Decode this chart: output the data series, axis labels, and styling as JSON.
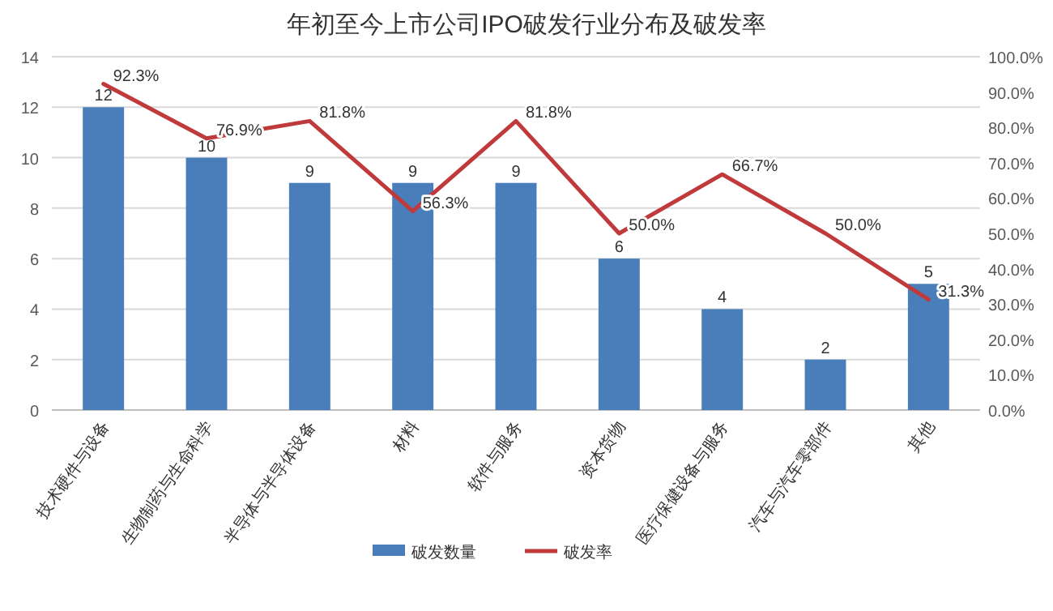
{
  "chart_data": {
    "type": "bar",
    "title": "年初至今上市公司IPO破发行业分布及破发率",
    "categories": [
      "技术硬件与设备",
      "生物制药与生命科学",
      "半导体与半导体设备",
      "材料",
      "软件与服务",
      "资本货物",
      "医疗保健设备与服务",
      "汽车与汽车零部件",
      "其他"
    ],
    "series": [
      {
        "name": "破发数量",
        "color": "#4a7ebb",
        "values": [
          12,
          10,
          9,
          9,
          9,
          6,
          4,
          2,
          5
        ],
        "value_labels": [
          "12",
          "10",
          "9",
          "9",
          "9",
          "6",
          "4",
          "2",
          "5"
        ]
      },
      {
        "name": "破发率",
        "type": "line",
        "axis": "y2",
        "color": "#c0393b",
        "values": [
          92.3,
          76.9,
          81.8,
          56.3,
          81.8,
          50.0,
          66.7,
          50.0,
          31.3
        ],
        "value_labels": [
          "92.3%",
          "76.9%",
          "81.8%",
          "56.3%",
          "81.8%",
          "50.0%",
          "66.7%",
          "50.0%",
          "31.3%"
        ]
      }
    ],
    "ylim": [
      0,
      14
    ],
    "yticks": [
      0,
      2,
      4,
      6,
      8,
      10,
      12,
      14
    ],
    "y2lim": [
      0,
      100
    ],
    "y2ticks": [
      {
        "value": 0,
        "label": "0.0%"
      },
      {
        "value": 10,
        "label": "10.0%"
      },
      {
        "value": 20,
        "label": "20.0%"
      },
      {
        "value": 30,
        "label": "30.0%"
      },
      {
        "value": 40,
        "label": "40.0%"
      },
      {
        "value": 50,
        "label": "50.0%"
      },
      {
        "value": 60,
        "label": "60.0%"
      },
      {
        "value": 70,
        "label": "70.0%"
      },
      {
        "value": 80,
        "label": "80.0%"
      },
      {
        "value": 90,
        "label": "90.0%"
      },
      {
        "value": 100,
        "label": "100.0%"
      }
    ],
    "grid": "y",
    "legend": "bottom",
    "marker": "none",
    "line_style": "solid"
  }
}
